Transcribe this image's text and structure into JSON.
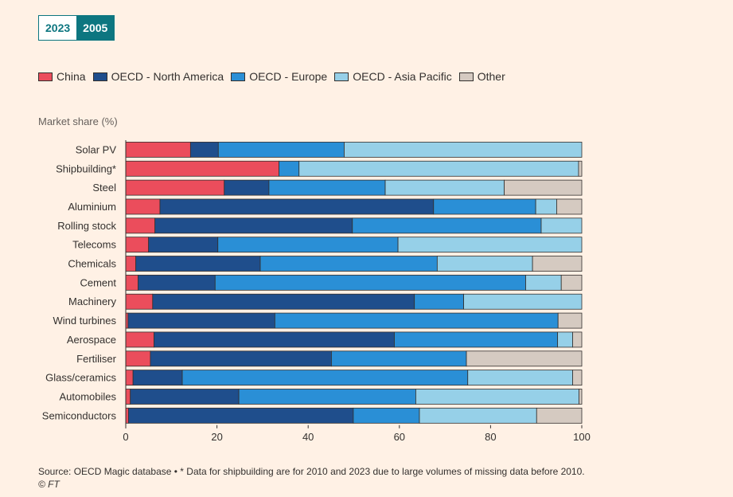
{
  "toggle": {
    "option_2023": "2023",
    "option_2005": "2005"
  },
  "legend": [
    "China",
    "OECD - North America",
    "OECD - Europe",
    "OECD - Asia Pacific",
    "Other"
  ],
  "colors": {
    "China": "#eb4d5c",
    "OECD - North America": "#1f4e8c",
    "OECD - Europe": "#2a8fd6",
    "OECD - Asia Pacific": "#96d0e8",
    "Other": "#d5cac1"
  },
  "chart_data": {
    "type": "bar",
    "orientation": "horizontal",
    "stacked": true,
    "ylabel": "Market share (%)",
    "xlim": [
      0,
      100
    ],
    "xticks": [
      0,
      20,
      40,
      60,
      80,
      100
    ],
    "categories": [
      "Solar PV",
      "Shipbuilding*",
      "Steel",
      "Aluminium",
      "Rolling stock",
      "Telecoms",
      "Chemicals",
      "Cement",
      "Machinery",
      "Wind turbines",
      "Aerospace",
      "Fertiliser",
      "Glass/ceramics",
      "Automobiles",
      "Semiconductors"
    ],
    "series": [
      {
        "name": "China",
        "values": [
          14.2,
          33.6,
          21.6,
          7.5,
          6.4,
          5.0,
          2.2,
          2.7,
          5.9,
          0.5,
          6.2,
          5.4,
          1.6,
          1.0,
          0.6
        ]
      },
      {
        "name": "OECD - North America",
        "values": [
          6.1,
          0,
          9.8,
          60.0,
          43.3,
          15.2,
          27.3,
          16.9,
          57.4,
          32.2,
          52.7,
          39.7,
          10.8,
          23.8,
          49.3
        ]
      },
      {
        "name": "OECD - Europe",
        "values": [
          27.6,
          4.4,
          25.5,
          22.4,
          41.4,
          39.5,
          38.8,
          68.1,
          10.8,
          62.1,
          35.8,
          29.6,
          62.6,
          38.8,
          14.5
        ]
      },
      {
        "name": "OECD - Asia Pacific",
        "values": [
          52.1,
          61.3,
          26.1,
          4.6,
          8.9,
          40.3,
          20.9,
          7.8,
          25.9,
          0,
          3.3,
          0,
          23.0,
          35.8,
          25.7
        ]
      },
      {
        "name": "Other",
        "values": [
          0,
          0.7,
          17.0,
          5.5,
          0,
          0,
          10.8,
          4.5,
          0,
          5.2,
          2.0,
          25.3,
          2.0,
          0.6,
          9.9
        ]
      }
    ]
  },
  "source": {
    "note": "Source: OECD Magic database • * Data for shipbuilding are for 2010 and 2023 due to large volumes of missing data before 2010.",
    "credit": "© FT"
  }
}
